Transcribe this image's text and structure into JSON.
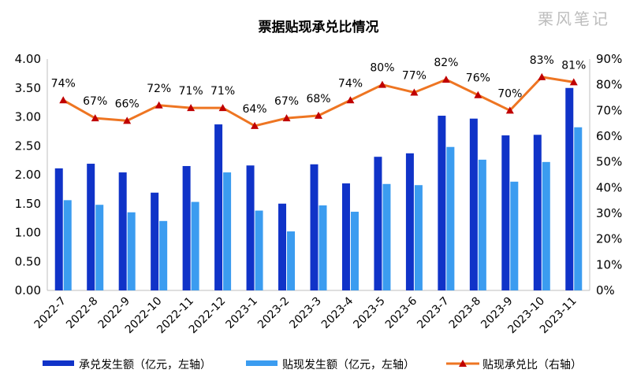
{
  "watermark": "栗风笔记",
  "chart_data": {
    "type": "bar",
    "title": "票据贴现承兑比情况",
    "categories": [
      "2022-7",
      "2022-8",
      "2022-9",
      "2022-10",
      "2022-11",
      "2022-12",
      "2023-1",
      "2023-2",
      "2023-3",
      "2023-4",
      "2023-5",
      "2023-6",
      "2023-7",
      "2023-8",
      "2023-9",
      "2023-10",
      "2023-11"
    ],
    "series": [
      {
        "name": "承兑发生额（亿元，左轴）",
        "kind": "bar",
        "axis": "left",
        "color": "#1033c8",
        "values": [
          2.11,
          2.19,
          2.04,
          1.69,
          2.15,
          2.87,
          2.16,
          1.5,
          2.18,
          1.85,
          2.31,
          2.37,
          3.02,
          2.97,
          2.68,
          2.69,
          3.5
        ]
      },
      {
        "name": "贴现发生额（亿元，左轴）",
        "kind": "bar",
        "axis": "left",
        "color": "#3b9cf0",
        "values": [
          1.56,
          1.48,
          1.35,
          1.2,
          1.53,
          2.04,
          1.38,
          1.02,
          1.47,
          1.36,
          1.84,
          1.82,
          2.48,
          2.26,
          1.88,
          2.22,
          2.82
        ]
      },
      {
        "name": "贴现承兑比（右轴）",
        "kind": "line",
        "axis": "right",
        "color": "#ee7522",
        "marker_color": "#c00000",
        "values": [
          74,
          67,
          66,
          72,
          71,
          71,
          64,
          67,
          68,
          74,
          80,
          77,
          82,
          76,
          70,
          83,
          81
        ],
        "labels": [
          "74%",
          "67%",
          "66%",
          "72%",
          "71%",
          "71%",
          "64%",
          "67%",
          "68%",
          "74%",
          "80%",
          "77%",
          "82%",
          "76%",
          "70%",
          "83%",
          "81%"
        ]
      }
    ],
    "y_left": {
      "min": 0,
      "max": 4,
      "ticks": [
        "0.00",
        "0.50",
        "1.00",
        "1.50",
        "2.00",
        "2.50",
        "3.00",
        "3.50",
        "4.00"
      ]
    },
    "y_right": {
      "min": 0,
      "max": 90,
      "ticks": [
        "0%",
        "10%",
        "20%",
        "30%",
        "40%",
        "50%",
        "60%",
        "70%",
        "80%",
        "90%"
      ]
    },
    "grid": false,
    "legend_position": "bottom"
  }
}
